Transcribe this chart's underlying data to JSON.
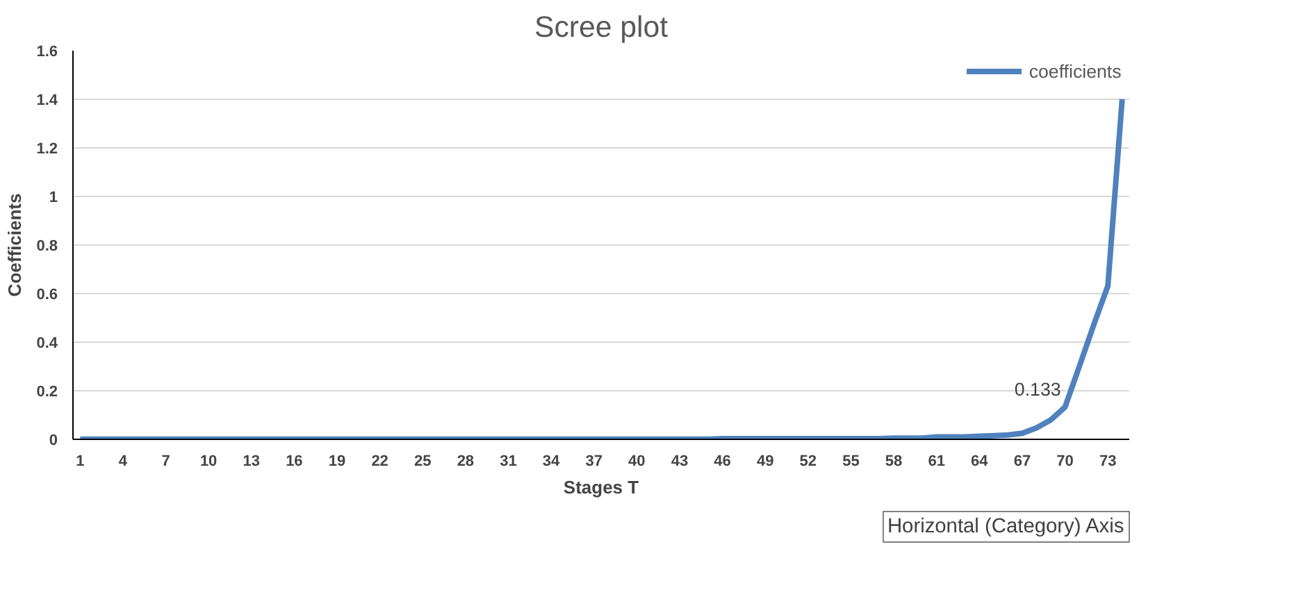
{
  "chart_data": {
    "type": "line",
    "title": "Scree plot",
    "xlabel": "Stages T",
    "ylabel": "Coefficients",
    "categories": [
      "1",
      null,
      null,
      "4",
      null,
      null,
      "7",
      null,
      null,
      "10",
      null,
      null,
      "13",
      null,
      null,
      "16",
      null,
      null,
      "19",
      null,
      null,
      "22",
      null,
      null,
      "25",
      null,
      null,
      "28",
      null,
      null,
      "31",
      null,
      null,
      "34",
      null,
      null,
      "37",
      null,
      null,
      "40",
      null,
      null,
      "43",
      null,
      null,
      "46",
      null,
      null,
      "49",
      null,
      null,
      "52",
      null,
      null,
      "55",
      null,
      null,
      "58",
      null,
      null,
      "61",
      null,
      null,
      "64",
      null,
      null,
      "67",
      null,
      null,
      "70",
      null,
      null,
      "73",
      null
    ],
    "series": [
      {
        "name": "coefficients",
        "color": "#4f81bd",
        "values": [
          0.001,
          0.001,
          0.001,
          0.001,
          0.001,
          0.001,
          0.001,
          0.001,
          0.001,
          0.001,
          0.001,
          0.001,
          0.001,
          0.001,
          0.001,
          0.001,
          0.001,
          0.001,
          0.001,
          0.001,
          0.001,
          0.001,
          0.001,
          0.001,
          0.001,
          0.001,
          0.001,
          0.001,
          0.001,
          0.001,
          0.001,
          0.001,
          0.001,
          0.001,
          0.001,
          0.001,
          0.001,
          0.001,
          0.001,
          0.001,
          0.001,
          0.001,
          0.001,
          0.001,
          0.001,
          0.003,
          0.003,
          0.003,
          0.003,
          0.003,
          0.003,
          0.003,
          0.003,
          0.003,
          0.003,
          0.003,
          0.003,
          0.005,
          0.005,
          0.005,
          0.01,
          0.01,
          0.01,
          0.013,
          0.015,
          0.018,
          0.025,
          0.047,
          0.08,
          0.133,
          0.3,
          0.47,
          0.632,
          1.4
        ]
      }
    ],
    "ylim": [
      0,
      1.6
    ],
    "yticks": [
      0,
      0.2,
      0.4,
      0.6,
      0.8,
      1,
      1.2,
      1.4,
      1.6
    ],
    "grid": "y",
    "legend": "top right",
    "marker": "none",
    "line_style": "solid",
    "annotations": [
      {
        "text": "0.133",
        "x": "70",
        "y": 0.133
      },
      "Horizontal (Category) Axis"
    ]
  }
}
